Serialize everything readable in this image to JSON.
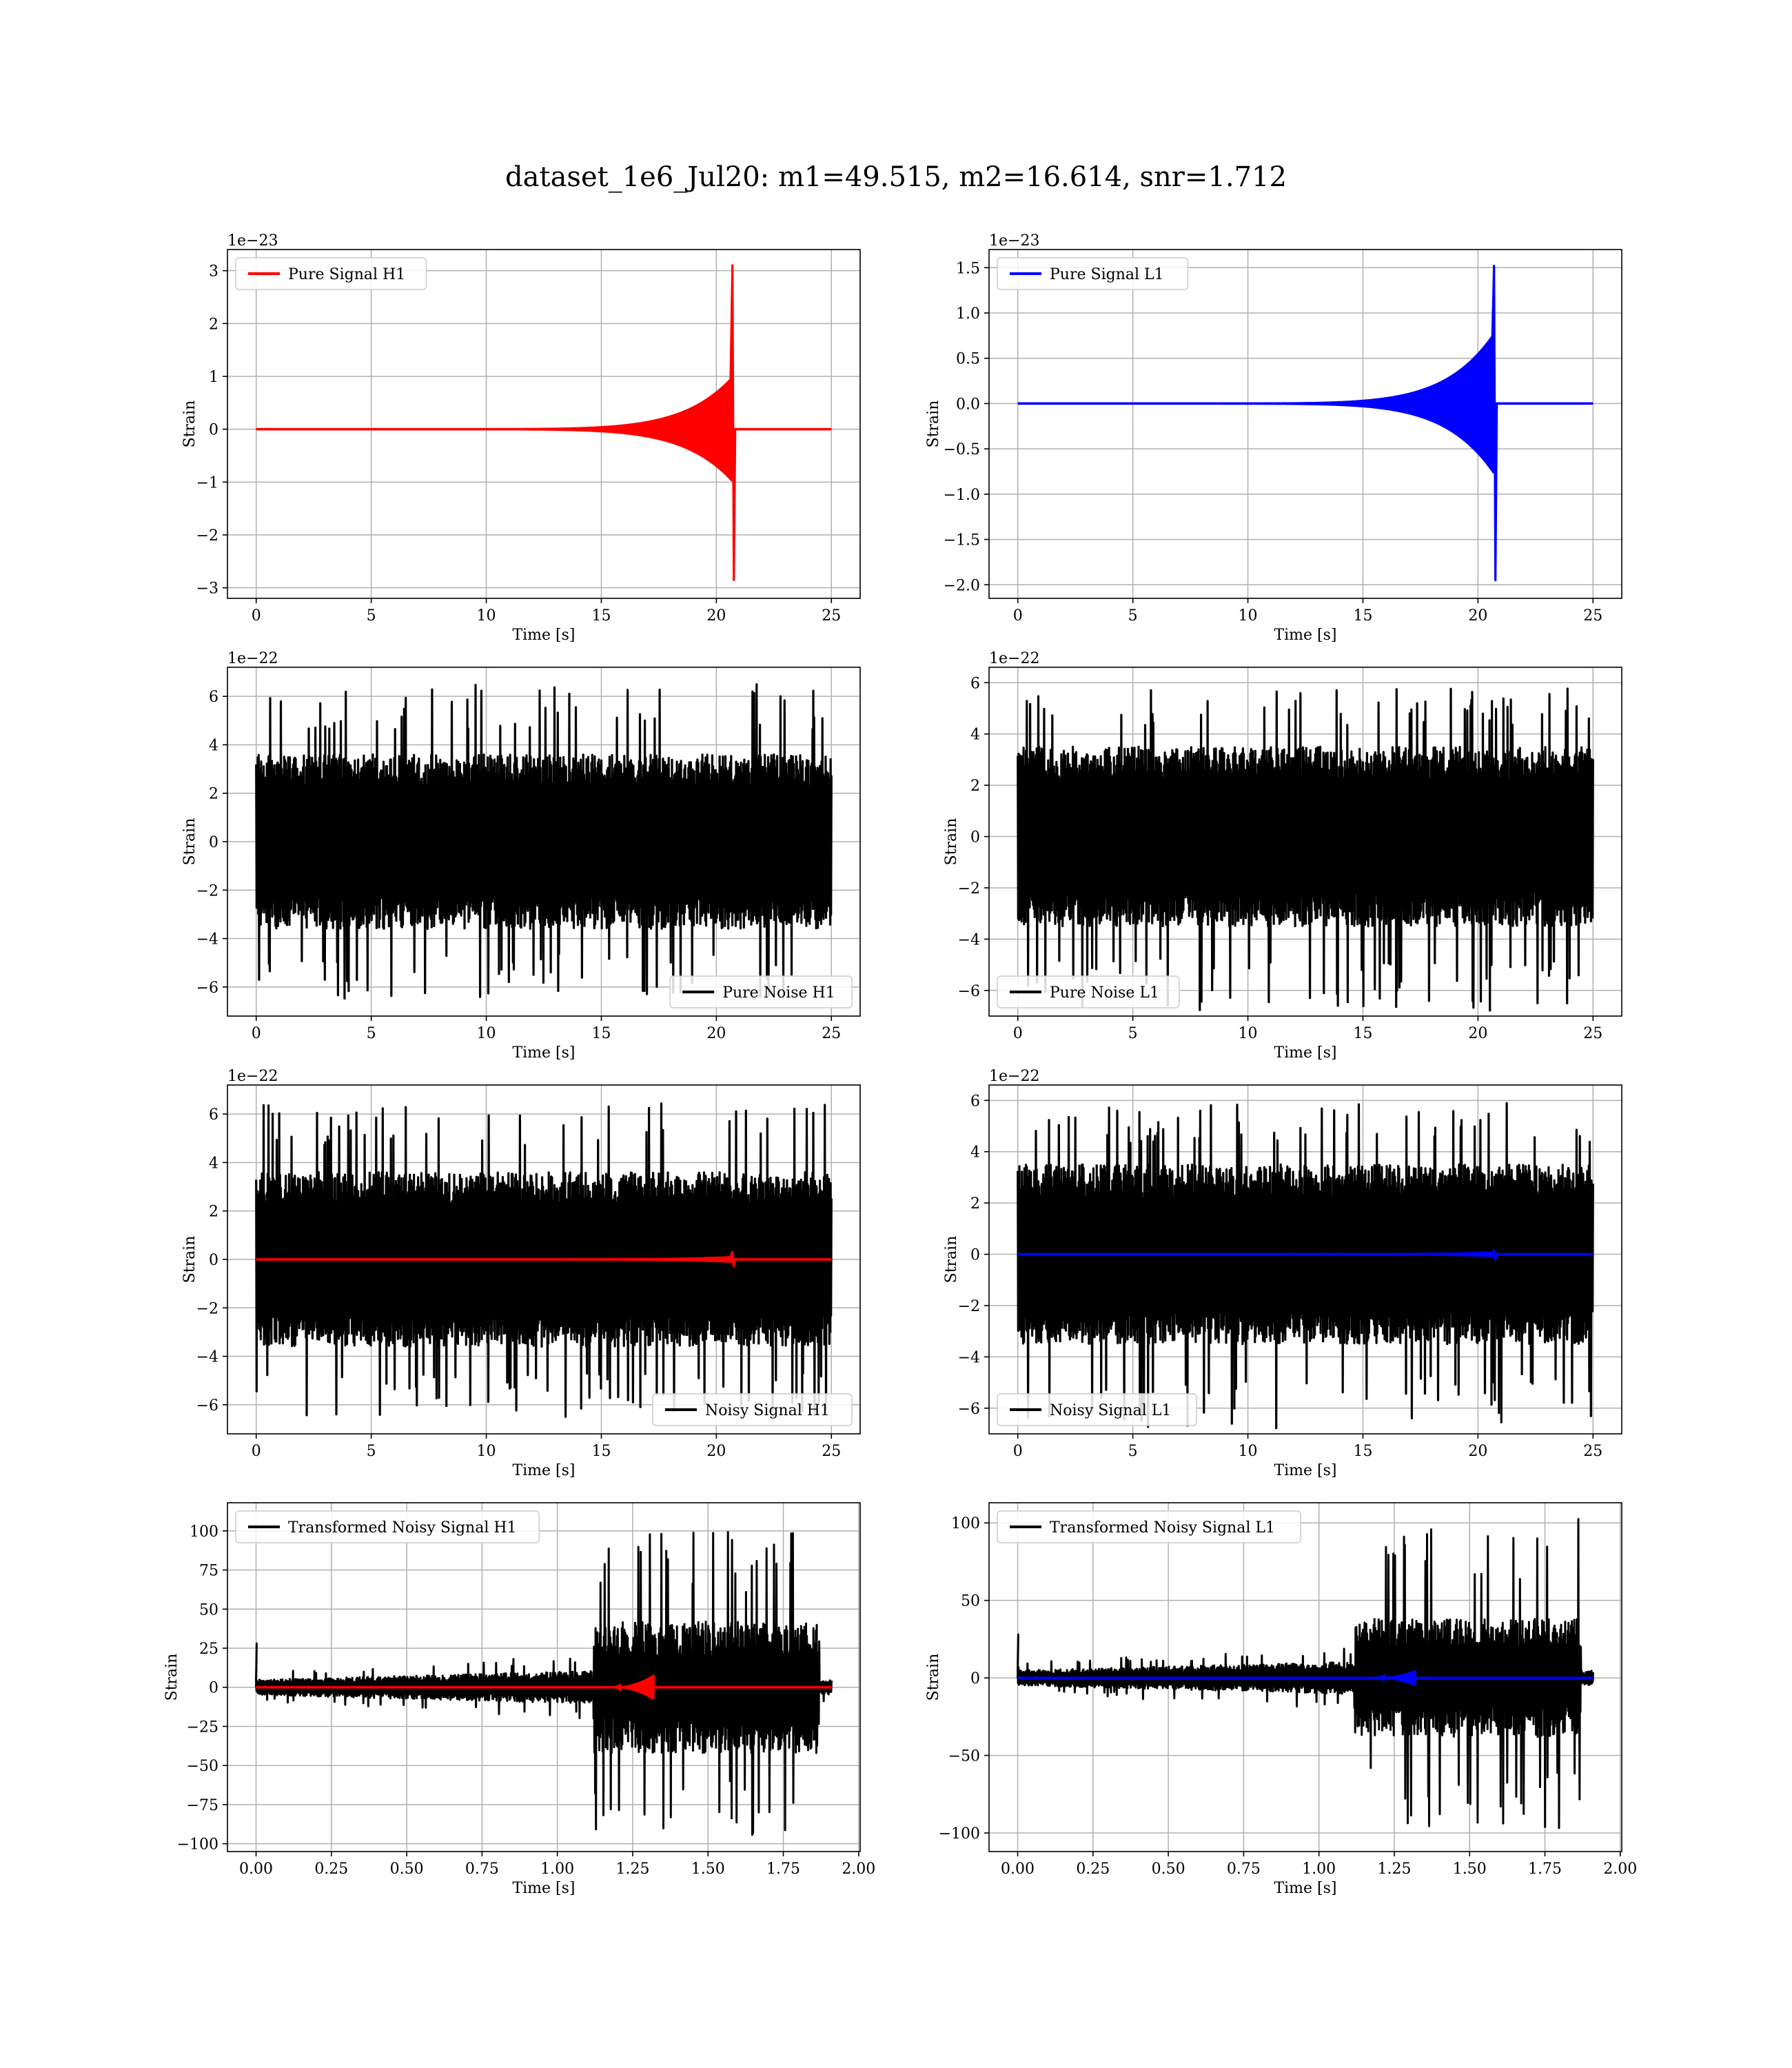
{
  "figure": {
    "title": "dataset_1e6_Jul20: m1=49.515, m2=16.614, snr=1.712"
  },
  "chart_data": [
    {
      "type": "line",
      "id": "pure-signal-h1",
      "xlabel": "Time [s]",
      "ylabel": "Strain",
      "offset_text": "1e−23",
      "xlim": [
        -1.25,
        26.25
      ],
      "ylim": [
        -3.2,
        3.4
      ],
      "xticks": [
        0,
        5,
        10,
        15,
        20,
        25
      ],
      "xtick_labels": [
        "0",
        "5",
        "10",
        "15",
        "20",
        "25"
      ],
      "yticks": [
        -3,
        -2,
        -1,
        0,
        1,
        2,
        3
      ],
      "ytick_labels": [
        "−3",
        "−2",
        "−1",
        "0",
        "1",
        "2",
        "3"
      ],
      "grid": true,
      "legend_loc": "upper-left",
      "series": [
        {
          "name": "Pure Signal H1",
          "color": "#ff0000",
          "kind": "chirp",
          "t_start": 0,
          "t_end": 25,
          "t_merge": 20.7,
          "peak_pos": 3.1,
          "peak_neg": -2.85,
          "ring_level": 0.7
        }
      ]
    },
    {
      "type": "line",
      "id": "pure-signal-l1",
      "xlabel": "Time [s]",
      "ylabel": "Strain",
      "offset_text": "1e−23",
      "xlim": [
        -1.25,
        26.25
      ],
      "ylim": [
        -2.15,
        1.7
      ],
      "xticks": [
        0,
        5,
        10,
        15,
        20,
        25
      ],
      "xtick_labels": [
        "0",
        "5",
        "10",
        "15",
        "20",
        "25"
      ],
      "yticks": [
        -2.0,
        -1.5,
        -1.0,
        -0.5,
        0.0,
        0.5,
        1.0,
        1.5
      ],
      "ytick_labels": [
        "−2.0",
        "−1.5",
        "−1.0",
        "−0.5",
        "0.0",
        "0.5",
        "1.0",
        "1.5"
      ],
      "grid": true,
      "legend_loc": "upper-left",
      "series": [
        {
          "name": "Pure Signal L1",
          "color": "#0000ff",
          "kind": "chirp",
          "t_start": 0,
          "t_end": 25,
          "t_merge": 20.7,
          "peak_pos": 1.52,
          "peak_neg": -1.95,
          "ring_level": 0.55
        }
      ]
    },
    {
      "type": "line",
      "id": "pure-noise-h1",
      "xlabel": "Time [s]",
      "ylabel": "Strain",
      "offset_text": "1e−22",
      "xlim": [
        -1.25,
        26.25
      ],
      "ylim": [
        -7.2,
        7.2
      ],
      "xticks": [
        0,
        5,
        10,
        15,
        20,
        25
      ],
      "xtick_labels": [
        "0",
        "5",
        "10",
        "15",
        "20",
        "25"
      ],
      "yticks": [
        -6,
        -4,
        -2,
        0,
        2,
        4,
        6
      ],
      "ytick_labels": [
        "−6",
        "−4",
        "−2",
        "0",
        "2",
        "4",
        "6"
      ],
      "grid": true,
      "legend_loc": "lower-right",
      "series": [
        {
          "name": "Pure Noise H1",
          "color": "#000000",
          "kind": "noise",
          "t_start": 0,
          "t_end": 25,
          "band": 3.6,
          "spike_max": 6.5,
          "spike_min": -6.5
        }
      ]
    },
    {
      "type": "line",
      "id": "pure-noise-l1",
      "xlabel": "Time [s]",
      "ylabel": "Strain",
      "offset_text": "1e−22",
      "xlim": [
        -1.25,
        26.25
      ],
      "ylim": [
        -7.0,
        6.6
      ],
      "xticks": [
        0,
        5,
        10,
        15,
        20,
        25
      ],
      "xtick_labels": [
        "0",
        "5",
        "10",
        "15",
        "20",
        "25"
      ],
      "yticks": [
        -6,
        -4,
        -2,
        0,
        2,
        4,
        6
      ],
      "ytick_labels": [
        "−6",
        "−4",
        "−2",
        "0",
        "2",
        "4",
        "6"
      ],
      "grid": true,
      "legend_loc": "lower-left",
      "series": [
        {
          "name": "Pure Noise L1",
          "color": "#000000",
          "kind": "noise",
          "t_start": 0,
          "t_end": 25,
          "band": 3.5,
          "spike_max": 5.9,
          "spike_min": -6.8
        }
      ]
    },
    {
      "type": "line",
      "id": "noisy-signal-h1",
      "xlabel": "Time [s]",
      "ylabel": "Strain",
      "offset_text": "1e−22",
      "xlim": [
        -1.25,
        26.25
      ],
      "ylim": [
        -7.2,
        7.2
      ],
      "xticks": [
        0,
        5,
        10,
        15,
        20,
        25
      ],
      "xtick_labels": [
        "0",
        "5",
        "10",
        "15",
        "20",
        "25"
      ],
      "yticks": [
        -6,
        -4,
        -2,
        0,
        2,
        4,
        6
      ],
      "ytick_labels": [
        "−6",
        "−4",
        "−2",
        "0",
        "2",
        "4",
        "6"
      ],
      "grid": true,
      "legend_loc": "lower-right",
      "series": [
        {
          "name": "Noisy Signal H1",
          "color": "#000000",
          "kind": "noise",
          "t_start": 0,
          "t_end": 25,
          "band": 3.6,
          "spike_max": 6.5,
          "spike_min": -6.5
        },
        {
          "color": "#ff0000",
          "kind": "chirp",
          "t_start": 0,
          "t_end": 25,
          "t_merge": 20.7,
          "peak_pos": 0.31,
          "peak_neg": -0.29,
          "ring_level": 0.07
        }
      ]
    },
    {
      "type": "line",
      "id": "noisy-signal-l1",
      "xlabel": "Time [s]",
      "ylabel": "Strain",
      "offset_text": "1e−22",
      "xlim": [
        -1.25,
        26.25
      ],
      "ylim": [
        -7.0,
        6.6
      ],
      "xticks": [
        0,
        5,
        10,
        15,
        20,
        25
      ],
      "xtick_labels": [
        "0",
        "5",
        "10",
        "15",
        "20",
        "25"
      ],
      "yticks": [
        -6,
        -4,
        -2,
        0,
        2,
        4,
        6
      ],
      "ytick_labels": [
        "−6",
        "−4",
        "−2",
        "0",
        "2",
        "4",
        "6"
      ],
      "grid": true,
      "legend_loc": "lower-left",
      "series": [
        {
          "name": "Noisy Signal L1",
          "color": "#000000",
          "kind": "noise",
          "t_start": 0,
          "t_end": 25,
          "band": 3.5,
          "spike_max": 5.9,
          "spike_min": -6.8
        },
        {
          "color": "#0000ff",
          "kind": "chirp",
          "t_start": 0,
          "t_end": 25,
          "t_merge": 20.7,
          "peak_pos": 0.15,
          "peak_neg": -0.2,
          "ring_level": 0.05
        }
      ]
    },
    {
      "type": "line",
      "id": "transformed-noisy-signal-h1",
      "xlabel": "Time [s]",
      "ylabel": "Strain",
      "offset_text": "",
      "xlim": [
        -0.095,
        2.005
      ],
      "ylim": [
        -105,
        118
      ],
      "xticks": [
        0.0,
        0.25,
        0.5,
        0.75,
        1.0,
        1.25,
        1.5,
        1.75,
        2.0
      ],
      "xtick_labels": [
        "0.00",
        "0.25",
        "0.50",
        "0.75",
        "1.00",
        "1.25",
        "1.50",
        "1.75",
        "2.00"
      ],
      "yticks": [
        -100,
        -75,
        -50,
        -25,
        0,
        25,
        50,
        75,
        100
      ],
      "ytick_labels": [
        "−100",
        "−75",
        "−50",
        "−25",
        "0",
        "25",
        "50",
        "75",
        "100"
      ],
      "grid": true,
      "legend_loc": "upper-left",
      "series": [
        {
          "name": "Transformed Noisy Signal H1",
          "color": "#000000",
          "kind": "tnoise",
          "t_start": 0,
          "t_end": 1.91,
          "t_jump": 1.12,
          "t_drop": 1.87,
          "low_band": 8,
          "high_band": 42,
          "spike_max": 105,
          "spike_min": -95
        },
        {
          "color": "#ff0000",
          "kind": "tchirp",
          "t_start": 0,
          "t_end": 1.91,
          "t_merge": 1.32,
          "peak": 8
        }
      ]
    },
    {
      "type": "line",
      "id": "transformed-noisy-signal-l1",
      "xlabel": "Time [s]",
      "ylabel": "Strain",
      "offset_text": "",
      "xlim": [
        -0.095,
        2.005
      ],
      "ylim": [
        -112,
        113
      ],
      "xticks": [
        0.0,
        0.25,
        0.5,
        0.75,
        1.0,
        1.25,
        1.5,
        1.75,
        2.0
      ],
      "xtick_labels": [
        "0.00",
        "0.25",
        "0.50",
        "0.75",
        "1.00",
        "1.25",
        "1.50",
        "1.75",
        "2.00"
      ],
      "yticks": [
        -100,
        -50,
        0,
        50,
        100
      ],
      "ytick_labels": [
        "−100",
        "−50",
        "0",
        "50",
        "100"
      ],
      "grid": true,
      "legend_loc": "upper-left",
      "series": [
        {
          "name": "Transformed Noisy Signal L1",
          "color": "#000000",
          "kind": "tnoise",
          "t_start": 0,
          "t_end": 1.91,
          "t_jump": 1.12,
          "t_drop": 1.87,
          "low_band": 8,
          "high_band": 38,
          "spike_max": 105,
          "spike_min": -100
        },
        {
          "color": "#0000ff",
          "kind": "tchirp",
          "t_start": 0,
          "t_end": 1.91,
          "t_merge": 1.32,
          "peak": 5
        }
      ]
    }
  ]
}
